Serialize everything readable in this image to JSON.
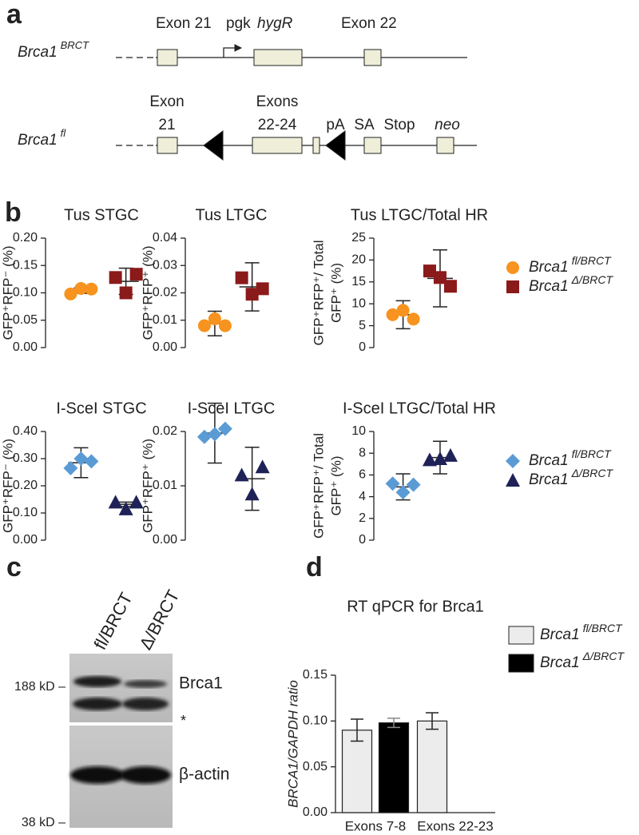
{
  "panel_labels": [
    "a",
    "b",
    "c",
    "d"
  ],
  "gene_diagram": {
    "rows": [
      {
        "allele": "Brca1",
        "allele_superscript": "BRCT",
        "labels": [
          "Exon 21",
          "pgk",
          "hygR",
          "Exon 22"
        ]
      },
      {
        "allele": "Brca1",
        "allele_superscript": "fl",
        "labels": [
          "Exon",
          "21",
          "Exons",
          "22-24",
          "pA",
          "SA",
          "Stop",
          "neo"
        ]
      }
    ]
  },
  "western_blot": {
    "lanes": [
      "fl/BRCT",
      "Δ/BRCT"
    ],
    "bands": [
      "Brca1",
      "*",
      "β-actin"
    ],
    "markers": [
      "188 kD –",
      "38 kD –"
    ]
  },
  "chart_data": [
    {
      "type": "dot",
      "title": "Tus STGC",
      "y_label": [
        "GFP⁺RFP⁻ (%)"
      ],
      "ylim": [
        0,
        0.2
      ],
      "yticks": [
        {
          "value": 0,
          "label": "0.00"
        },
        {
          "value": 0.05,
          "label": "0.05"
        },
        {
          "value": 0.1,
          "label": "0.10"
        },
        {
          "value": 0.15,
          "label": "0.15"
        },
        {
          "value": 0.2,
          "label": "0.20"
        }
      ],
      "series": [
        {
          "color": "#f7931e",
          "marker": "circle",
          "values": [
            0.098,
            0.108,
            0.107
          ],
          "mean": 0.104,
          "error": 0.005
        },
        {
          "color": "#8b1a1a",
          "marker": "square",
          "values": [
            0.128,
            0.1,
            0.134
          ],
          "mean": 0.121,
          "error": 0.024
        }
      ]
    },
    {
      "type": "dot",
      "title": "Tus LTGC",
      "y_label": [
        "GFP⁺RFP⁺ (%)"
      ],
      "ylim": [
        0,
        0.04
      ],
      "yticks": [
        {
          "value": 0,
          "label": "0.00"
        },
        {
          "value": 0.01,
          "label": "0.01"
        },
        {
          "value": 0.02,
          "label": "0.02"
        },
        {
          "value": 0.03,
          "label": "0.03"
        },
        {
          "value": 0.04,
          "label": "0.04"
        }
      ],
      "series": [
        {
          "color": "#f7931e",
          "marker": "circle",
          "values": [
            0.008,
            0.0105,
            0.008
          ],
          "mean": 0.0088,
          "error": 0.0045
        },
        {
          "color": "#8b1a1a",
          "marker": "square",
          "values": [
            0.0255,
            0.0195,
            0.0215
          ],
          "mean": 0.0222,
          "error": 0.0088
        }
      ]
    },
    {
      "type": "dot",
      "title": "Tus LTGC/Total HR",
      "y_label": [
        "GFP⁺RFP⁺/ Total",
        "GFP⁺ (%)"
      ],
      "ylim": [
        0,
        25
      ],
      "yticks": [
        0,
        5,
        10,
        15,
        20,
        25
      ],
      "legend": "right",
      "series": [
        {
          "name": "Brca1",
          "name_superscript": "fl/BRCT",
          "color": "#f7931e",
          "marker": "circle",
          "values": [
            7.5,
            8.5,
            6.5
          ],
          "mean": 7.5,
          "error": 3.2
        },
        {
          "name": "Brca1",
          "name_superscript": "Δ/BRCT",
          "color": "#8b1a1a",
          "marker": "square",
          "values": [
            17.5,
            16,
            14
          ],
          "mean": 15.8,
          "error": 6.5
        }
      ]
    },
    {
      "type": "dot",
      "title": "I-SceI STGC",
      "y_label": [
        "GFP⁺RFP⁻ (%)"
      ],
      "ylim": [
        0,
        0.4
      ],
      "yticks": [
        {
          "value": 0,
          "label": "0.00"
        },
        {
          "value": 0.1,
          "label": "0.10"
        },
        {
          "value": 0.2,
          "label": "0.20"
        },
        {
          "value": 0.3,
          "label": "0.30"
        },
        {
          "value": 0.4,
          "label": "0.40"
        }
      ],
      "series": [
        {
          "color": "#5b9bd5",
          "marker": "diamond",
          "values": [
            0.265,
            0.3,
            0.29
          ],
          "mean": 0.285,
          "error": 0.055
        },
        {
          "color": "#1f2257",
          "marker": "triangle",
          "values": [
            0.14,
            0.115,
            0.14
          ],
          "mean": 0.132,
          "error": 0.008
        }
      ]
    },
    {
      "type": "dot",
      "title": "I-SceI LTGC",
      "y_label": [
        "GFP⁺RFP⁺ (%)"
      ],
      "ylim": [
        0,
        0.02
      ],
      "yticks": [
        {
          "value": 0,
          "label": "0.00"
        },
        {
          "value": 0.01,
          "label": "0.01"
        },
        {
          "value": 0.02,
          "label": "0.02"
        }
      ],
      "series": [
        {
          "color": "#5b9bd5",
          "marker": "diamond",
          "values": [
            0.019,
            0.0195,
            0.0205
          ],
          "mean": 0.0197,
          "error": 0.0055
        },
        {
          "color": "#1f2257",
          "marker": "triangle",
          "values": [
            0.012,
            0.0085,
            0.0135
          ],
          "mean": 0.0113,
          "error": 0.0058
        }
      ]
    },
    {
      "type": "dot",
      "title": "I-SceI LTGC/Total HR",
      "y_label": [
        "GFP⁺RFP⁺/ Total",
        "GFP⁺ (%)"
      ],
      "ylim": [
        0,
        10
      ],
      "yticks": [
        0,
        2,
        4,
        6,
        8,
        10
      ],
      "legend": "right",
      "series": [
        {
          "name": "Brca1",
          "name_superscript": "fl/BRCT",
          "color": "#5b9bd5",
          "marker": "diamond",
          "values": [
            5.2,
            4.4,
            5.1
          ],
          "mean": 4.9,
          "error": 1.2
        },
        {
          "name": "Brca1",
          "name_superscript": "Δ/BRCT",
          "color": "#1f2257",
          "marker": "triangle",
          "values": [
            7.4,
            7.5,
            7.8
          ],
          "mean": 7.6,
          "error": 1.5
        }
      ]
    },
    {
      "type": "bar",
      "title": "RT qPCR for Brca1",
      "y_label": [
        "BRCA1/GAPDH ratio"
      ],
      "categories": [
        "Exons 7-8",
        "Exons 22-23"
      ],
      "ylim": [
        0,
        0.15
      ],
      "yticks": [
        {
          "value": 0,
          "label": "0.00"
        },
        {
          "value": 0.05,
          "label": "0.05"
        },
        {
          "value": 0.1,
          "label": "0.10"
        },
        {
          "value": 0.15,
          "label": "0.15"
        }
      ],
      "legend": "right",
      "series": [
        {
          "name": "Brca1",
          "name_superscript": "fl/BRCT",
          "color": "#ececec",
          "values": [
            0.09,
            0.1
          ],
          "errors": [
            0.012,
            0.009
          ]
        },
        {
          "name": "Brca1",
          "name_superscript": "Δ/BRCT",
          "color": "#000000",
          "values": [
            0.098,
            null
          ],
          "errors": [
            0.005,
            null
          ]
        }
      ]
    }
  ]
}
